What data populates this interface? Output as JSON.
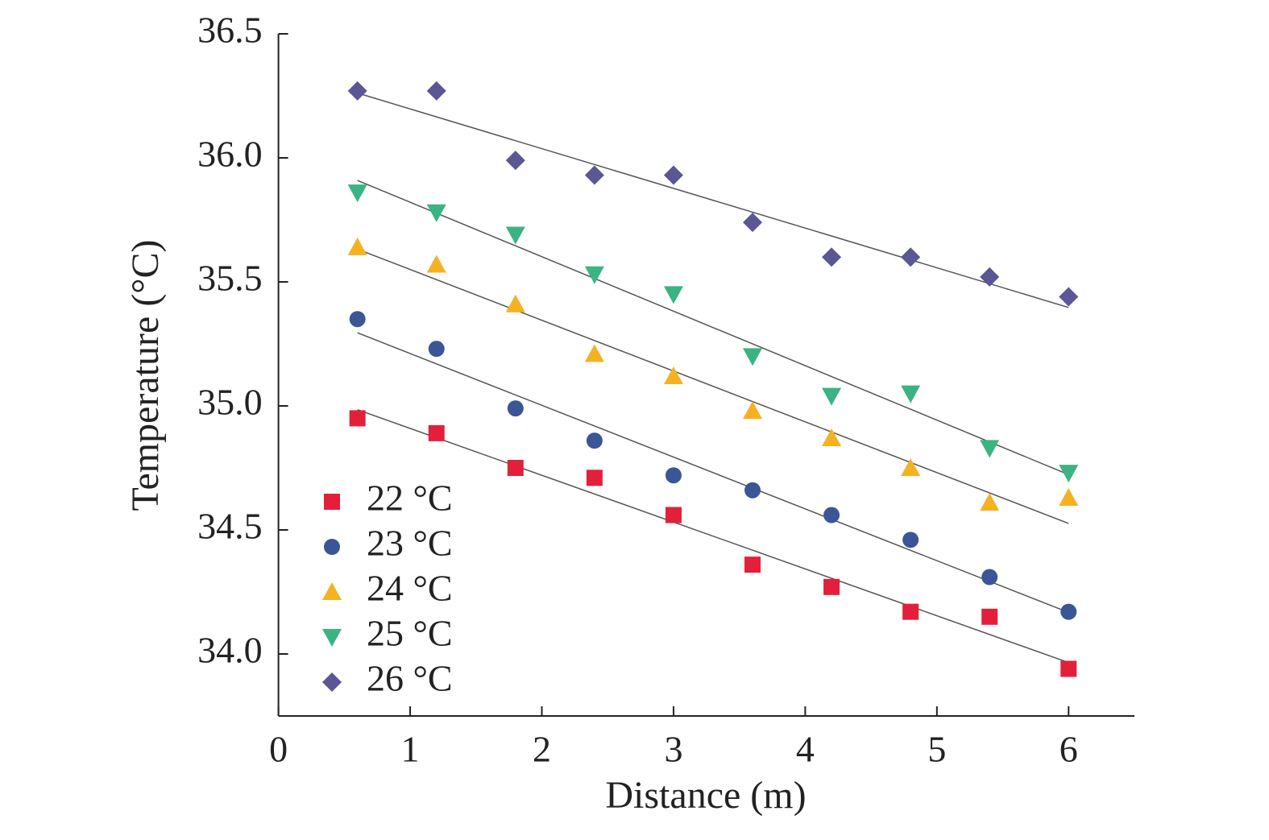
{
  "chart_data": {
    "type": "scatter",
    "x_label": "Distance (m)",
    "y_label": "Temperature (°C)",
    "x": [
      0.6,
      1.2,
      1.8,
      2.4,
      3.0,
      3.6,
      4.2,
      4.8,
      5.4,
      6.0
    ],
    "series": [
      {
        "name": "22 °C",
        "color": "#e3203a",
        "marker": "square",
        "values": [
          34.95,
          34.89,
          34.75,
          34.71,
          34.56,
          34.36,
          34.27,
          34.17,
          34.15,
          33.94
        ]
      },
      {
        "name": "23 °C",
        "color": "#3b5696",
        "marker": "circle",
        "values": [
          35.35,
          35.23,
          34.99,
          34.86,
          34.72,
          34.66,
          34.56,
          34.46,
          34.31,
          34.17
        ]
      },
      {
        "name": "24 °C",
        "color": "#f4b223",
        "marker": "triangle",
        "values": [
          35.64,
          35.57,
          35.41,
          35.21,
          35.12,
          34.98,
          34.87,
          34.75,
          34.61,
          34.63
        ]
      },
      {
        "name": "25 °C",
        "color": "#3cb383",
        "marker": "triangle-down",
        "values": [
          35.86,
          35.78,
          35.69,
          35.53,
          35.45,
          35.2,
          35.04,
          35.05,
          34.83,
          34.73
        ]
      },
      {
        "name": "26 °C",
        "color": "#5b5694",
        "marker": "diamond",
        "values": [
          36.27,
          36.27,
          35.99,
          35.93,
          35.93,
          35.74,
          35.6,
          35.6,
          35.52,
          35.44
        ]
      }
    ],
    "trendline": true,
    "xlim": [
      0,
      6.5
    ],
    "xticks": [
      0,
      1,
      2,
      3,
      4,
      5,
      6
    ],
    "ylim": [
      33.75,
      36.5
    ],
    "yticks": [
      {
        "value": 34,
        "label": "34.0"
      },
      34.5,
      {
        "value": 35,
        "label": "35.0"
      },
      35.5,
      {
        "value": 36,
        "label": "36.0"
      },
      36.5
    ],
    "legend": "lower-left"
  }
}
